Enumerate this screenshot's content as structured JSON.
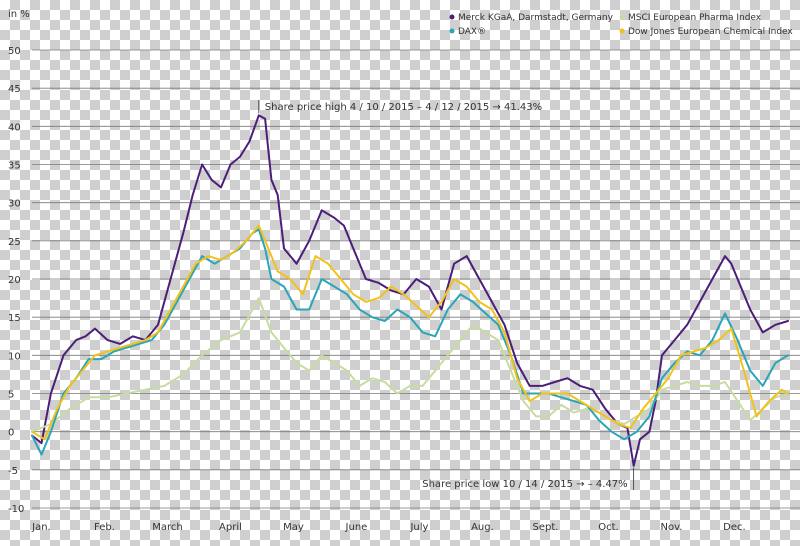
{
  "chart_data": {
    "type": "line",
    "ylabel": "in %",
    "ylim": [
      -10,
      50
    ],
    "yticks": [
      -10,
      -5,
      0,
      5,
      10,
      15,
      20,
      25,
      30,
      35,
      40,
      45,
      50
    ],
    "xlim": [
      0,
      12
    ],
    "categories": [
      "Jan.",
      "Feb.",
      "March",
      "April",
      "May",
      "June",
      "July",
      "Aug.",
      "Sept.",
      "Oct.",
      "Nov.",
      "Dec."
    ],
    "grid": true,
    "legend_position": "top-right",
    "colors": {
      "merck": "#4b1e7a",
      "dax": "#2aa6b8",
      "msci": "#c7dca0",
      "djchem": "#f2c21b"
    },
    "series": [
      {
        "name": "Merck KGaA, Darmstadt, Germany",
        "color_key": "merck",
        "points": [
          [
            0,
            -0.5
          ],
          [
            0.15,
            -1.5
          ],
          [
            0.3,
            5
          ],
          [
            0.5,
            10
          ],
          [
            0.7,
            12
          ],
          [
            0.85,
            12.5
          ],
          [
            1.0,
            13.5
          ],
          [
            1.2,
            12
          ],
          [
            1.4,
            11.5
          ],
          [
            1.6,
            12.5
          ],
          [
            1.8,
            12
          ],
          [
            2.0,
            14
          ],
          [
            2.2,
            20
          ],
          [
            2.4,
            26
          ],
          [
            2.55,
            31
          ],
          [
            2.7,
            35
          ],
          [
            2.85,
            33
          ],
          [
            3.0,
            32
          ],
          [
            3.15,
            35
          ],
          [
            3.3,
            36
          ],
          [
            3.45,
            38
          ],
          [
            3.6,
            41.43
          ],
          [
            3.7,
            41
          ],
          [
            3.8,
            33
          ],
          [
            3.9,
            31
          ],
          [
            4.0,
            24
          ],
          [
            4.2,
            22
          ],
          [
            4.4,
            25
          ],
          [
            4.6,
            29
          ],
          [
            4.8,
            28
          ],
          [
            4.95,
            27
          ],
          [
            5.1,
            24
          ],
          [
            5.3,
            20
          ],
          [
            5.5,
            19.5
          ],
          [
            5.7,
            18.5
          ],
          [
            5.9,
            18
          ],
          [
            6.1,
            20
          ],
          [
            6.3,
            19
          ],
          [
            6.5,
            16
          ],
          [
            6.7,
            22
          ],
          [
            6.9,
            23
          ],
          [
            7.1,
            20
          ],
          [
            7.3,
            17
          ],
          [
            7.5,
            14
          ],
          [
            7.7,
            9
          ],
          [
            7.9,
            6
          ],
          [
            8.1,
            6
          ],
          [
            8.3,
            6.5
          ],
          [
            8.5,
            7
          ],
          [
            8.7,
            6
          ],
          [
            8.9,
            5.5
          ],
          [
            9.1,
            3
          ],
          [
            9.3,
            1
          ],
          [
            9.45,
            0.5
          ],
          [
            9.55,
            -4.47
          ],
          [
            9.65,
            -1
          ],
          [
            9.8,
            0
          ],
          [
            9.9,
            4
          ],
          [
            10.0,
            10
          ],
          [
            10.2,
            12
          ],
          [
            10.4,
            14
          ],
          [
            10.6,
            17
          ],
          [
            10.8,
            20
          ],
          [
            11.0,
            23
          ],
          [
            11.1,
            22
          ],
          [
            11.2,
            20
          ],
          [
            11.4,
            16
          ],
          [
            11.6,
            13
          ],
          [
            11.8,
            14
          ],
          [
            12.0,
            14.5
          ]
        ]
      },
      {
        "name": "MSCI European Pharma Index",
        "color_key": "msci",
        "points": [
          [
            0,
            0
          ],
          [
            0.3,
            1
          ],
          [
            0.6,
            3
          ],
          [
            0.9,
            4.5
          ],
          [
            1.2,
            4.5
          ],
          [
            1.5,
            5
          ],
          [
            1.8,
            5.5
          ],
          [
            2.1,
            6
          ],
          [
            2.4,
            7.5
          ],
          [
            2.7,
            10
          ],
          [
            3.0,
            12
          ],
          [
            3.3,
            13
          ],
          [
            3.6,
            17.5
          ],
          [
            3.8,
            13
          ],
          [
            4.0,
            11
          ],
          [
            4.2,
            9
          ],
          [
            4.4,
            8
          ],
          [
            4.6,
            10
          ],
          [
            4.8,
            9
          ],
          [
            5.0,
            8
          ],
          [
            5.2,
            6
          ],
          [
            5.4,
            7
          ],
          [
            5.6,
            6.5
          ],
          [
            5.8,
            5
          ],
          [
            6.0,
            6
          ],
          [
            6.2,
            6
          ],
          [
            6.4,
            8
          ],
          [
            6.6,
            10
          ],
          [
            6.8,
            12
          ],
          [
            7.0,
            14
          ],
          [
            7.2,
            13
          ],
          [
            7.4,
            12
          ],
          [
            7.6,
            8
          ],
          [
            7.8,
            4
          ],
          [
            8.0,
            2
          ],
          [
            8.2,
            2
          ],
          [
            8.4,
            3.5
          ],
          [
            8.6,
            2.5
          ],
          [
            8.8,
            3
          ],
          [
            9.0,
            2.5
          ],
          [
            9.2,
            1.5
          ],
          [
            9.4,
            1
          ],
          [
            9.6,
            2
          ],
          [
            9.8,
            3
          ],
          [
            10.0,
            5.5
          ],
          [
            10.2,
            6
          ],
          [
            10.4,
            6.5
          ],
          [
            10.6,
            6
          ],
          [
            10.8,
            6
          ],
          [
            11.0,
            6.5
          ],
          [
            11.2,
            4
          ],
          [
            11.4,
            1.5
          ],
          [
            11.6,
            3
          ],
          [
            11.8,
            4.5
          ],
          [
            12.0,
            5
          ]
        ]
      },
      {
        "name": "DAX®",
        "color_key": "dax",
        "points": [
          [
            0,
            -0.5
          ],
          [
            0.15,
            -3
          ],
          [
            0.3,
            0
          ],
          [
            0.5,
            5
          ],
          [
            0.7,
            7
          ],
          [
            0.9,
            9.5
          ],
          [
            1.1,
            9.5
          ],
          [
            1.3,
            10.5
          ],
          [
            1.5,
            11
          ],
          [
            1.7,
            11.5
          ],
          [
            1.9,
            12
          ],
          [
            2.1,
            14
          ],
          [
            2.3,
            17
          ],
          [
            2.5,
            20
          ],
          [
            2.7,
            23
          ],
          [
            2.9,
            22
          ],
          [
            3.1,
            23
          ],
          [
            3.3,
            24
          ],
          [
            3.5,
            26
          ],
          [
            3.6,
            26.5
          ],
          [
            3.7,
            24
          ],
          [
            3.8,
            20
          ],
          [
            4.0,
            19
          ],
          [
            4.2,
            16
          ],
          [
            4.4,
            16
          ],
          [
            4.6,
            20
          ],
          [
            4.8,
            19
          ],
          [
            5.0,
            18
          ],
          [
            5.2,
            16
          ],
          [
            5.4,
            15
          ],
          [
            5.6,
            14.5
          ],
          [
            5.8,
            16
          ],
          [
            6.0,
            15
          ],
          [
            6.2,
            13
          ],
          [
            6.4,
            12.5
          ],
          [
            6.6,
            16
          ],
          [
            6.8,
            18
          ],
          [
            7.0,
            17
          ],
          [
            7.2,
            15.5
          ],
          [
            7.4,
            14
          ],
          [
            7.6,
            10
          ],
          [
            7.8,
            5
          ],
          [
            8.0,
            5
          ],
          [
            8.2,
            5
          ],
          [
            8.4,
            4.5
          ],
          [
            8.6,
            4
          ],
          [
            8.8,
            3.5
          ],
          [
            9.0,
            1.5
          ],
          [
            9.2,
            0
          ],
          [
            9.4,
            -1
          ],
          [
            9.6,
            0
          ],
          [
            9.8,
            2
          ],
          [
            10.0,
            7
          ],
          [
            10.2,
            9
          ],
          [
            10.4,
            10.5
          ],
          [
            10.6,
            10
          ],
          [
            10.8,
            12
          ],
          [
            11.0,
            15.5
          ],
          [
            11.2,
            12
          ],
          [
            11.4,
            8
          ],
          [
            11.6,
            6
          ],
          [
            11.8,
            9
          ],
          [
            12.0,
            10
          ]
        ]
      },
      {
        "name": "Dow Jones European Chemical Index",
        "color_key": "djchem",
        "points": [
          [
            0,
            0
          ],
          [
            0.2,
            -1
          ],
          [
            0.4,
            3
          ],
          [
            0.6,
            6
          ],
          [
            0.8,
            8
          ],
          [
            1.0,
            10
          ],
          [
            1.2,
            10.5
          ],
          [
            1.4,
            11
          ],
          [
            1.6,
            11.5
          ],
          [
            1.8,
            12
          ],
          [
            2.0,
            13
          ],
          [
            2.2,
            16
          ],
          [
            2.4,
            19
          ],
          [
            2.6,
            22
          ],
          [
            2.8,
            23
          ],
          [
            3.0,
            22.5
          ],
          [
            3.2,
            23.5
          ],
          [
            3.4,
            25
          ],
          [
            3.6,
            27
          ],
          [
            3.75,
            24
          ],
          [
            3.9,
            21
          ],
          [
            4.1,
            20
          ],
          [
            4.3,
            18
          ],
          [
            4.5,
            23
          ],
          [
            4.7,
            22
          ],
          [
            4.9,
            20
          ],
          [
            5.1,
            18
          ],
          [
            5.3,
            17
          ],
          [
            5.5,
            17.5
          ],
          [
            5.7,
            19
          ],
          [
            5.9,
            18
          ],
          [
            6.1,
            16.5
          ],
          [
            6.3,
            15
          ],
          [
            6.5,
            17
          ],
          [
            6.7,
            20
          ],
          [
            6.9,
            19
          ],
          [
            7.1,
            17
          ],
          [
            7.3,
            16
          ],
          [
            7.5,
            13
          ],
          [
            7.7,
            7
          ],
          [
            7.9,
            4
          ],
          [
            8.1,
            5
          ],
          [
            8.3,
            5
          ],
          [
            8.5,
            5
          ],
          [
            8.7,
            4
          ],
          [
            8.9,
            3
          ],
          [
            9.1,
            2
          ],
          [
            9.3,
            1
          ],
          [
            9.5,
            0.5
          ],
          [
            9.7,
            3
          ],
          [
            9.9,
            5
          ],
          [
            10.1,
            7
          ],
          [
            10.3,
            10
          ],
          [
            10.5,
            10.5
          ],
          [
            10.7,
            11
          ],
          [
            10.9,
            12
          ],
          [
            11.1,
            13.5
          ],
          [
            11.3,
            8
          ],
          [
            11.5,
            2
          ],
          [
            11.7,
            4
          ],
          [
            11.9,
            5.5
          ],
          [
            12.0,
            5
          ]
        ]
      }
    ],
    "annotations": [
      {
        "text": "Share price high 4 / 10 / 2015 – 4 / 12 / 2015 → 41.43%",
        "x": 3.6,
        "y": 41.43,
        "position": "above"
      },
      {
        "text": "Share price low 10 / 14 / 2015 → – 4.47%",
        "x": 9.55,
        "y": -4.47,
        "position": "below"
      }
    ]
  }
}
